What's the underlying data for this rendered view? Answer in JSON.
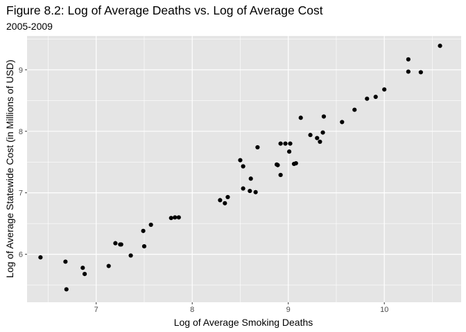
{
  "chart_data": {
    "type": "scatter",
    "title": "Figure 8.2: Log of Average Deaths vs. Log of Average Cost",
    "subtitle": "2005-2009",
    "xlabel": "Log of Average Smoking Deaths",
    "ylabel": "Log of Average Statewide Cost (in Millions of USD)",
    "xlim": [
      6.28,
      10.8
    ],
    "ylim": [
      5.22,
      9.55
    ],
    "xticks": [
      7,
      8,
      9,
      10
    ],
    "yticks": [
      6,
      7,
      8,
      9
    ],
    "grid": true,
    "legend": "none",
    "colors": {
      "panel": "#e5e5e5",
      "grid": "#ffffff",
      "point": "#000000"
    },
    "points": [
      {
        "x": 6.42,
        "y": 5.95
      },
      {
        "x": 6.68,
        "y": 5.88
      },
      {
        "x": 6.69,
        "y": 5.43
      },
      {
        "x": 6.86,
        "y": 5.78
      },
      {
        "x": 6.88,
        "y": 5.68
      },
      {
        "x": 7.13,
        "y": 5.81
      },
      {
        "x": 7.2,
        "y": 6.18
      },
      {
        "x": 7.25,
        "y": 6.16
      },
      {
        "x": 7.26,
        "y": 6.16
      },
      {
        "x": 7.36,
        "y": 5.98
      },
      {
        "x": 7.49,
        "y": 6.38
      },
      {
        "x": 7.5,
        "y": 6.13
      },
      {
        "x": 7.57,
        "y": 6.48
      },
      {
        "x": 7.78,
        "y": 6.59
      },
      {
        "x": 7.82,
        "y": 6.6
      },
      {
        "x": 7.86,
        "y": 6.6
      },
      {
        "x": 8.29,
        "y": 6.88
      },
      {
        "x": 8.34,
        "y": 6.83
      },
      {
        "x": 8.37,
        "y": 6.93
      },
      {
        "x": 8.5,
        "y": 7.53
      },
      {
        "x": 8.53,
        "y": 7.43
      },
      {
        "x": 8.53,
        "y": 7.07
      },
      {
        "x": 8.6,
        "y": 7.03
      },
      {
        "x": 8.61,
        "y": 7.23
      },
      {
        "x": 8.66,
        "y": 7.01
      },
      {
        "x": 8.68,
        "y": 7.74
      },
      {
        "x": 8.88,
        "y": 7.46
      },
      {
        "x": 8.89,
        "y": 7.45
      },
      {
        "x": 8.92,
        "y": 7.29
      },
      {
        "x": 8.92,
        "y": 7.8
      },
      {
        "x": 8.97,
        "y": 7.8
      },
      {
        "x": 9.01,
        "y": 7.67
      },
      {
        "x": 9.02,
        "y": 7.8
      },
      {
        "x": 9.06,
        "y": 7.47
      },
      {
        "x": 9.08,
        "y": 7.48
      },
      {
        "x": 9.13,
        "y": 8.22
      },
      {
        "x": 9.23,
        "y": 7.94
      },
      {
        "x": 9.3,
        "y": 7.89
      },
      {
        "x": 9.33,
        "y": 7.83
      },
      {
        "x": 9.36,
        "y": 7.98
      },
      {
        "x": 9.37,
        "y": 8.24
      },
      {
        "x": 9.56,
        "y": 8.15
      },
      {
        "x": 9.69,
        "y": 8.35
      },
      {
        "x": 9.82,
        "y": 8.53
      },
      {
        "x": 9.91,
        "y": 8.56
      },
      {
        "x": 10.0,
        "y": 8.68
      },
      {
        "x": 10.25,
        "y": 8.97
      },
      {
        "x": 10.25,
        "y": 9.17
      },
      {
        "x": 10.38,
        "y": 8.96
      },
      {
        "x": 10.58,
        "y": 9.39
      }
    ]
  }
}
